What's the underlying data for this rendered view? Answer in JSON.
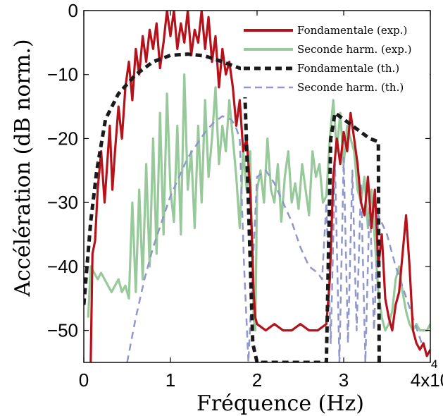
{
  "chart_data": {
    "type": "line",
    "xlabel": "Fréquence (Hz)",
    "ylabel": "Accélération (dB norm.)",
    "xlim": [
      0,
      40000
    ],
    "ylim": [
      -55,
      0
    ],
    "x_ticks": [
      {
        "value": 0,
        "label": "0"
      },
      {
        "value": 10000,
        "label": "1"
      },
      {
        "value": 20000,
        "label": "2"
      },
      {
        "value": 30000,
        "label": "3"
      },
      {
        "value": 40000,
        "label": "4x10"
      }
    ],
    "x_exponent": "4",
    "y_ticks": [
      {
        "value": 0,
        "label": "0"
      },
      {
        "value": -10,
        "label": "−10"
      },
      {
        "value": -20,
        "label": "−20"
      },
      {
        "value": -30,
        "label": "−30"
      },
      {
        "value": -40,
        "label": "−40"
      },
      {
        "value": -50,
        "label": "−50"
      }
    ],
    "legend_position": "top-right",
    "colors": {
      "fund_exp": "#b5121b",
      "harm_exp": "#97c99a",
      "fund_th": "#1a1a1a",
      "harm_th": "#8f97cc"
    },
    "series": [
      {
        "name": "Fondamentale (exp.)",
        "style": "solid",
        "x": [
          800,
          1000,
          1300,
          1600,
          2000,
          2400,
          2700,
          3000,
          3300,
          3600,
          4000,
          4400,
          4800,
          5200,
          5600,
          6000,
          6400,
          6800,
          7200,
          7600,
          8000,
          8400,
          8800,
          9200,
          9600,
          10000,
          10400,
          10800,
          11200,
          11600,
          12000,
          12400,
          12800,
          13200,
          13600,
          14000,
          14400,
          14800,
          15200,
          15600,
          16000,
          16400,
          16800,
          17200,
          17600,
          18000,
          18400,
          18800,
          19200,
          19400,
          19600,
          19800,
          20000,
          21000,
          22000,
          23000,
          24000,
          25000,
          26000,
          27000,
          28000,
          28400,
          28800,
          29200,
          29600,
          30000,
          30400,
          30800,
          31200,
          31600,
          32000,
          32400,
          32800,
          33200,
          33600,
          34000,
          34400,
          34800,
          35200,
          35600,
          36000,
          36400,
          36800,
          37200,
          37600,
          38000,
          38400,
          38800,
          39200,
          39600,
          40000
        ],
        "values": [
          -55,
          -38,
          -36,
          -28,
          -22,
          -30,
          -24,
          -18,
          -28,
          -22,
          -15,
          -20,
          -12,
          -8,
          -14,
          -6,
          -10,
          -4,
          -8,
          -3,
          -6,
          -2,
          -9,
          -5,
          0,
          -4,
          0,
          -6,
          -2,
          -5,
          0,
          -7,
          -3,
          -5,
          0,
          -6,
          -1,
          -8,
          -4,
          -12,
          -6,
          -10,
          -8,
          -12,
          -18,
          -14,
          -22,
          -20,
          -28,
          -35,
          -44,
          -48,
          -49,
          -50,
          -49,
          -50,
          -50,
          -49,
          -50,
          -50,
          -49,
          -42,
          -26,
          -20,
          -24,
          -19,
          -22,
          -16,
          -20,
          -24,
          -30,
          -32,
          -26,
          -34,
          -28,
          -40,
          -35,
          -45,
          -48,
          -50,
          -46,
          -44,
          -38,
          -32,
          -40,
          -50,
          -52,
          -53,
          -52,
          -54,
          -53
        ]
      },
      {
        "name": "Seconde harm. (exp.)",
        "style": "solid",
        "x": [
          500,
          800,
          1200,
          1600,
          2000,
          2400,
          2800,
          3200,
          3600,
          4000,
          4400,
          4800,
          5200,
          5600,
          6000,
          6400,
          6800,
          7200,
          7600,
          8000,
          8400,
          8800,
          9200,
          9600,
          10000,
          10400,
          10800,
          11200,
          11600,
          12000,
          12400,
          12800,
          13200,
          13600,
          14000,
          14400,
          14800,
          15200,
          15600,
          16000,
          16400,
          16800,
          17200,
          17600,
          18000,
          18400,
          18800,
          19200,
          19400,
          19600,
          19800,
          20000,
          20400,
          20800,
          21200,
          21600,
          22000,
          22400,
          22800,
          23200,
          23600,
          24000,
          24400,
          24800,
          25200,
          25600,
          26000,
          26400,
          26800,
          27200,
          27600,
          28000,
          28400,
          28800,
          29200,
          29600,
          30000,
          30400,
          30800,
          31200,
          31600,
          32000,
          32400,
          32800,
          33200,
          33600,
          34000,
          34400,
          34800,
          35200,
          35600,
          36000,
          36400,
          36800,
          37200,
          37600,
          38000,
          38400,
          38800,
          39200,
          39600,
          40000
        ],
        "values": [
          -48,
          -40,
          -41,
          -42,
          -41,
          -42,
          -43,
          -44,
          -43,
          -42,
          -44,
          -43,
          -45,
          -30,
          -44,
          -28,
          -42,
          -24,
          -40,
          -20,
          -38,
          -16,
          -35,
          -13,
          -28,
          -33,
          -18,
          -35,
          -10,
          -28,
          -22,
          -34,
          -18,
          -30,
          -14,
          -26,
          -20,
          -12,
          -24,
          -18,
          -22,
          -14,
          -20,
          -26,
          -34,
          -22,
          -28,
          -22,
          -36,
          -48,
          -50,
          -28,
          -25,
          -30,
          -20,
          -28,
          -30,
          -24,
          -33,
          -26,
          -22,
          -30,
          -27,
          -31,
          -24,
          -28,
          -32,
          -22,
          -26,
          -24,
          -30,
          -29,
          -20,
          -14,
          -22,
          -16,
          -24,
          -18,
          -20,
          -22,
          -28,
          -30,
          -26,
          -34,
          -28,
          -36,
          -44,
          -48,
          -50,
          -49,
          -47,
          -42,
          -40,
          -44,
          -47,
          -49,
          -50,
          -49,
          -50,
          -50,
          -50,
          -49
        ]
      },
      {
        "name": "Fondamentale (th.)",
        "style": "dashed",
        "x": [
          0,
          800,
          1500,
          2500,
          4000,
          6000,
          8000,
          10000,
          12000,
          14000,
          16000,
          18000,
          18500,
          19000,
          19500,
          20000,
          28000,
          28500,
          29000,
          30000,
          31000,
          32000,
          33000,
          34000,
          34100
        ],
        "values": [
          -46,
          -33,
          -25,
          -17,
          -13,
          -10,
          -8,
          -7,
          -6.8,
          -7.1,
          -8,
          -9,
          -9.1,
          -30,
          -52,
          -55,
          -55,
          -20,
          -16,
          -17,
          -18,
          -19,
          -20,
          -20.5,
          -55
        ]
      },
      {
        "name": "Seconde harm. (th.)",
        "style": "dashed",
        "x": [
          5000,
          6000,
          7000,
          8000,
          9000,
          10000,
          11000,
          12000,
          13000,
          14000,
          15000,
          16000,
          17000,
          17500,
          18000,
          18500,
          19000,
          19500,
          20000,
          21000,
          22000,
          23000,
          24000,
          25000,
          26000,
          27000,
          27500,
          28000,
          28500,
          29000,
          29500,
          30000,
          30500,
          31000,
          31500,
          32000,
          32500,
          33000,
          33500,
          34000,
          35000,
          36000,
          37000,
          38000,
          39000
        ],
        "values": [
          -55,
          -48,
          -42,
          -37,
          -33,
          -29,
          -26,
          -23,
          -21,
          -19,
          -17.5,
          -16.5,
          -17,
          -18,
          -20,
          -40,
          -55,
          -40,
          -26,
          -25,
          -27,
          -30,
          -33,
          -37,
          -40,
          -41,
          -42,
          -30,
          -52,
          -24,
          -55,
          -23,
          -52,
          -25,
          -50,
          -27,
          -55,
          -29,
          -50,
          -32,
          -35,
          -40,
          -44,
          -48,
          -52
        ]
      }
    ]
  }
}
